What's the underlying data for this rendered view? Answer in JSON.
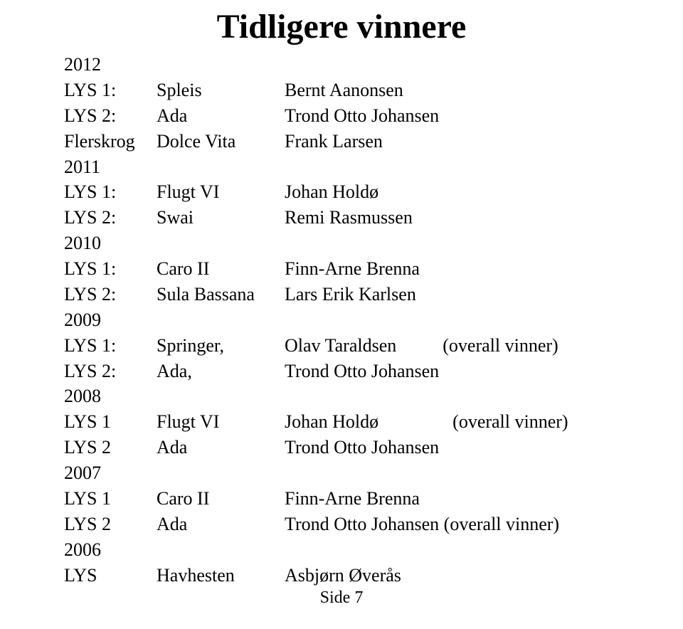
{
  "title": "Tidligere vinnere",
  "entries": [
    {
      "type": "year",
      "year": "2012"
    },
    {
      "type": "row",
      "class": "LYS 1:",
      "boat": "Spleis",
      "name": "Bernt Aanonsen"
    },
    {
      "type": "row",
      "class": "LYS 2:",
      "boat": "Ada",
      "name": "Trond Otto Johansen"
    },
    {
      "type": "row",
      "class": "Flerskrog",
      "boat": "Dolce Vita",
      "name": "Frank Larsen"
    },
    {
      "type": "year",
      "year": "2011"
    },
    {
      "type": "row",
      "class": "LYS 1:",
      "boat": "Flugt VI",
      "name": "Johan Holdø"
    },
    {
      "type": "row",
      "class": "LYS 2:",
      "boat": "Swai",
      "name": "Remi Rasmussen"
    },
    {
      "type": "year",
      "year": "2010"
    },
    {
      "type": "row",
      "class": "LYS 1:",
      "boat": "Caro II",
      "name": "Finn-Arne Brenna"
    },
    {
      "type": "row",
      "class": "LYS 2:",
      "boat": "Sula Bassana",
      "name": "Lars Erik Karlsen"
    },
    {
      "type": "year",
      "year": "2009"
    },
    {
      "type": "row",
      "class": "LYS 1:",
      "boat": "Springer,",
      "name": "Olav Taraldsen          (overall vinner)"
    },
    {
      "type": "row",
      "class": "LYS 2:",
      "boat": "Ada,",
      "name": "Trond Otto Johansen"
    },
    {
      "type": "year",
      "year": "2008"
    },
    {
      "type": "row",
      "class": "LYS 1",
      "boat": "Flugt VI",
      "name": "Johan Holdø                (overall vinner)"
    },
    {
      "type": "row",
      "class": "LYS 2",
      "boat": "Ada",
      "name": "Trond Otto Johansen"
    },
    {
      "type": "year",
      "year": "2007"
    },
    {
      "type": "row",
      "class": "LYS 1",
      "boat": "Caro   II",
      "name": "Finn-Arne Brenna"
    },
    {
      "type": "row",
      "class": "LYS 2",
      "boat": "Ada",
      "name": "Trond Otto Johansen (overall vinner)"
    },
    {
      "type": "year",
      "year": "2006"
    },
    {
      "type": "row",
      "class": "LYS",
      "boat": "Havhesten",
      "name": "Asbjørn Øverås"
    }
  ],
  "footer": "Side 7"
}
